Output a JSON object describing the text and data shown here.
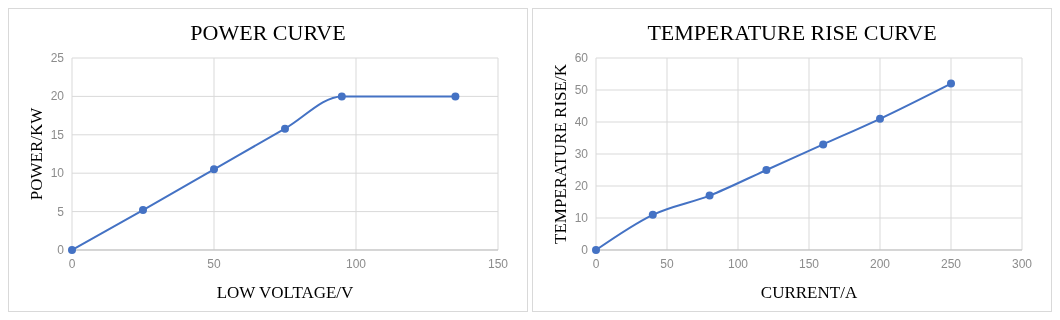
{
  "chart_data": [
    {
      "type": "line",
      "title": "POWER CURVE",
      "xlabel": "LOW VOLTAGE/V",
      "ylabel": "POWER/KW",
      "x": [
        0,
        25,
        50,
        75,
        95,
        135
      ],
      "series": [
        {
          "color": "#4472c4",
          "values": [
            0,
            5.2,
            10.5,
            15.8,
            20,
            20
          ]
        }
      ],
      "xlim": [
        0,
        150
      ],
      "xticks": [
        0,
        50,
        100,
        150
      ],
      "ylim": [
        0,
        25
      ],
      "yticks": [
        0,
        5,
        10,
        15,
        20,
        25
      ],
      "grid": true,
      "marker": "circle"
    },
    {
      "type": "line",
      "title": "TEMPERATURE RISE CURVE",
      "xlabel": "CURRENT/A",
      "ylabel": "TEMPERATURE RISE/K",
      "x": [
        0,
        40,
        80,
        120,
        160,
        200,
        250
      ],
      "series": [
        {
          "color": "#4472c4",
          "values": [
            0,
            11,
            17,
            25,
            33,
            41,
            52
          ]
        }
      ],
      "xlim": [
        0,
        300
      ],
      "xticks": [
        0,
        50,
        100,
        150,
        200,
        250,
        300
      ],
      "ylim": [
        0,
        60
      ],
      "yticks": [
        0,
        10,
        20,
        30,
        40,
        50,
        60
      ],
      "grid": true,
      "marker": "circle"
    }
  ]
}
